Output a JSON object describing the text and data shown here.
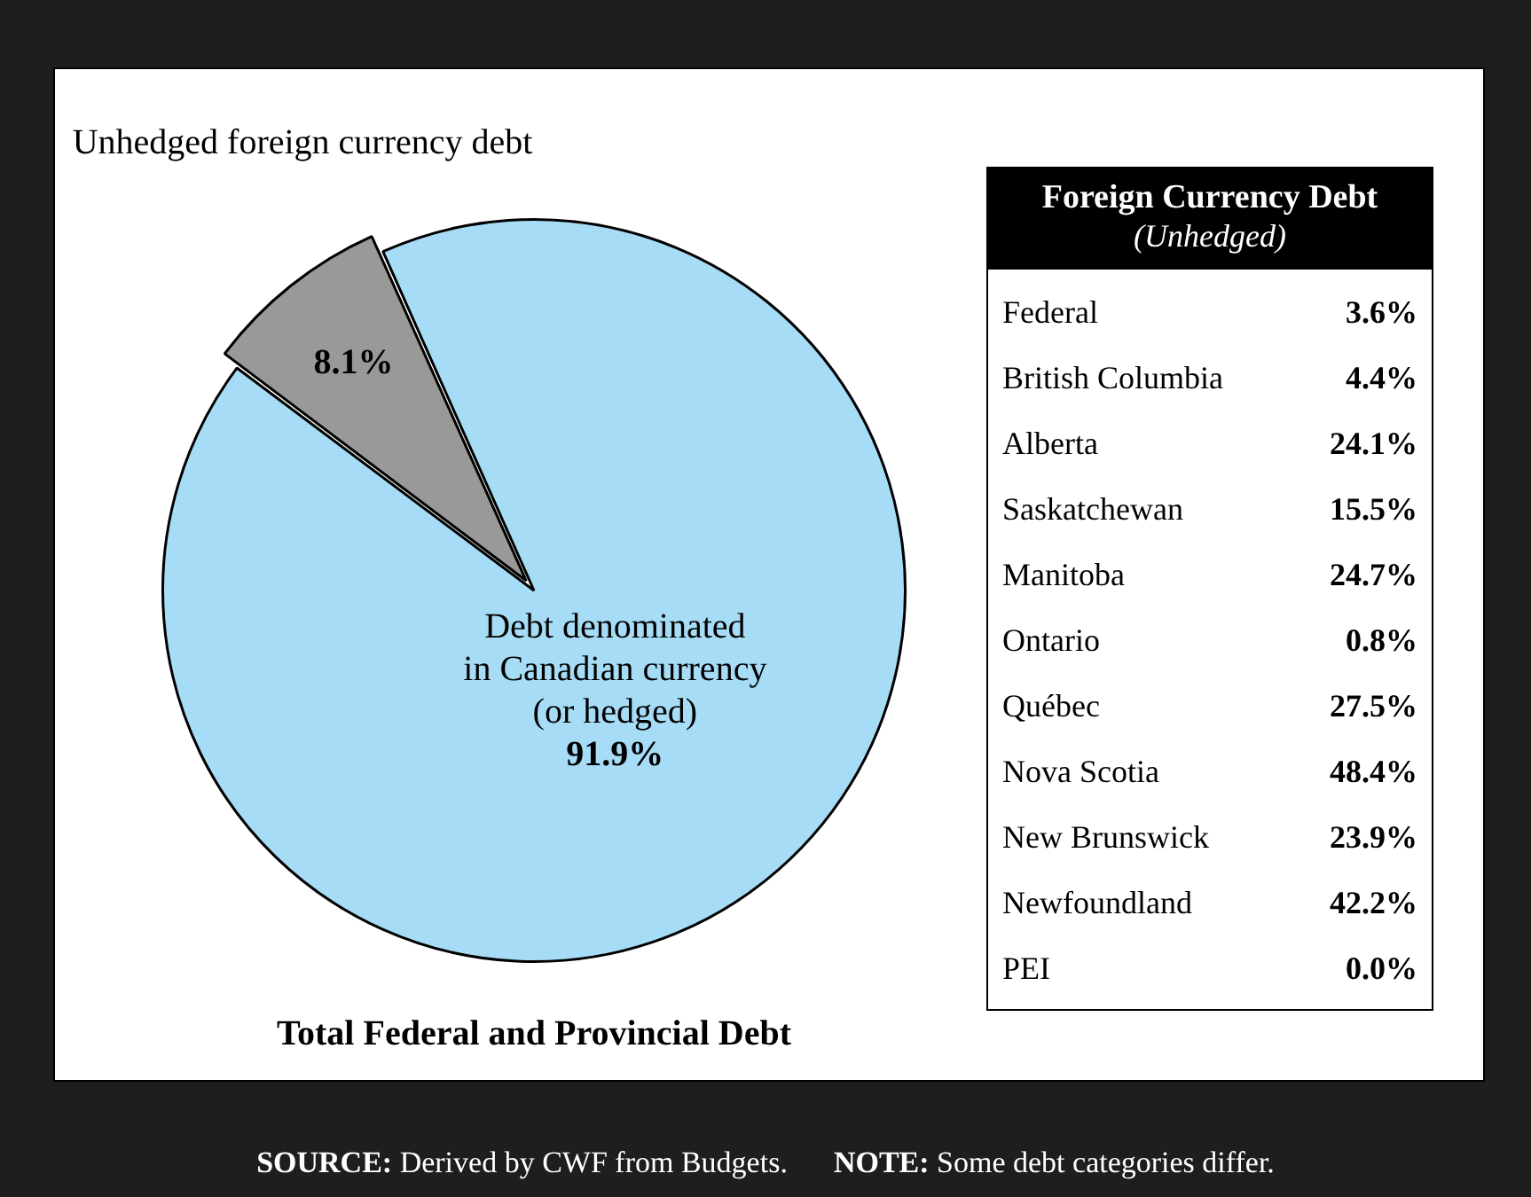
{
  "chart_data": [
    {
      "type": "pie",
      "title": "Total Federal and Provincial Debt",
      "categories": [
        "Debt denominated\nin Canadian currency\n(or hedged)",
        "Unhedged foreign currency debt"
      ],
      "values": [
        91.9,
        8.1
      ],
      "value_labels": [
        "91.9%",
        "8.1%"
      ],
      "colors": [
        "#a6dcf5",
        "#999999"
      ],
      "legend": false,
      "annotations": [
        "SOURCE: Derived by CWF from Budgets.",
        "NOTE: Some debt categories differ."
      ]
    },
    {
      "type": "other",
      "title": "Foreign Currency Debt",
      "subtitle": "(Unhedged)",
      "categories": [
        "Federal",
        "British Columbia",
        "Alberta",
        "Saskatchewan",
        "Manitoba",
        "Ontario",
        "Québec",
        "Nova Scotia",
        "New Brunswick",
        "Newfoundland",
        "PEI"
      ],
      "value_labels": [
        "3.6%",
        "4.4%",
        "24.1%",
        "15.5%",
        "24.7%",
        "0.8%",
        "27.5%",
        "48.4%",
        "23.9%",
        "42.2%",
        "0.0%"
      ]
    }
  ]
}
